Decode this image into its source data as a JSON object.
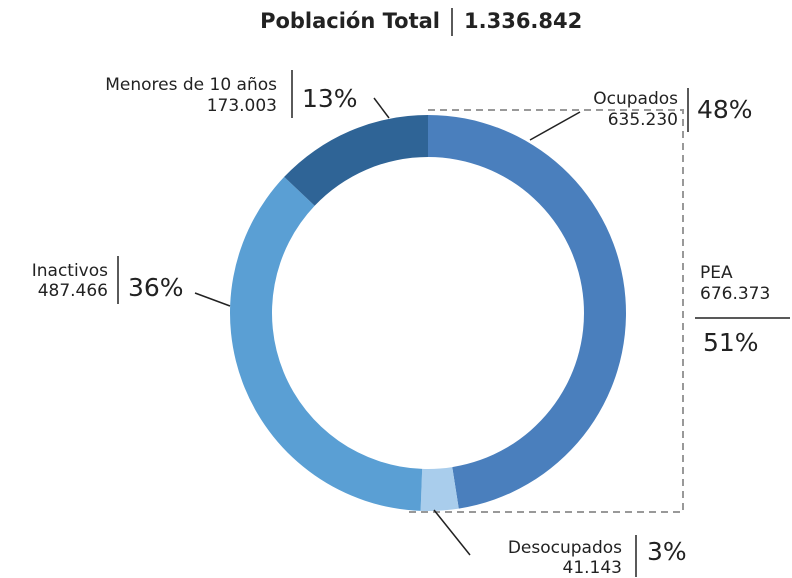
{
  "chart_data": {
    "type": "pie",
    "donut": true,
    "title": "Población Total",
    "total_label": "1.336.842",
    "categories": [
      "Ocupados",
      "Desocupados",
      "Inactivos",
      "Menores de 10 años"
    ],
    "values": [
      635230,
      41143,
      487466,
      173003
    ],
    "value_labels": [
      "635.230",
      "41.143",
      "487.466",
      "173.003"
    ],
    "percent_labels": [
      "48%",
      "3%",
      "36%",
      "13%"
    ],
    "colors": [
      "#4a7fbd",
      "#a9cdec",
      "#5a9fd4",
      "#2f6496"
    ],
    "group": {
      "name": "PEA",
      "total_label": "676.373",
      "percent_label": "51%"
    }
  }
}
